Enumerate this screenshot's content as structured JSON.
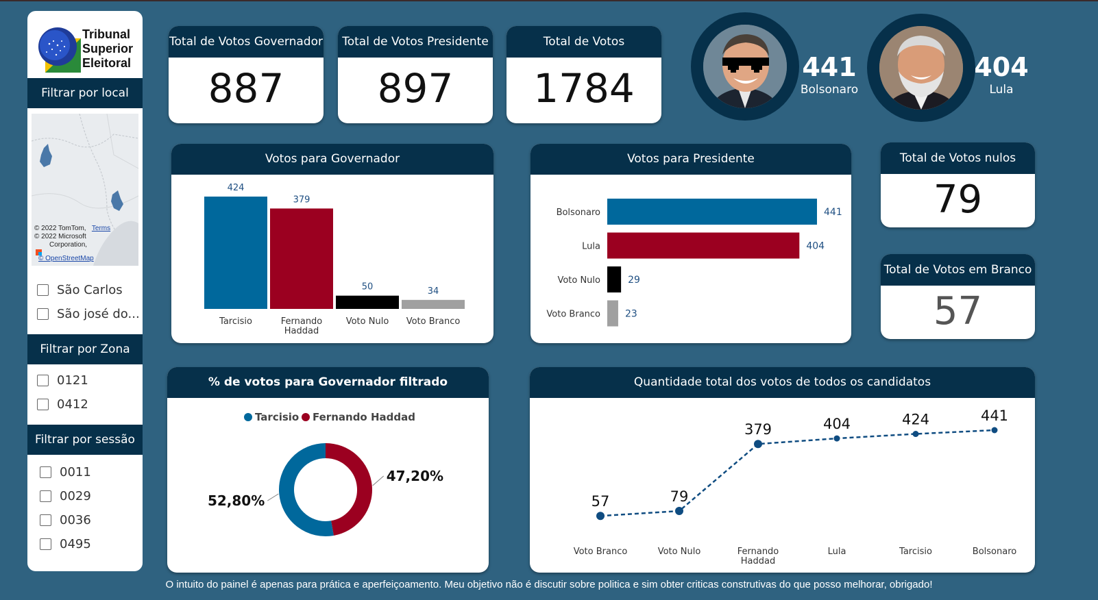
{
  "logo": {
    "line1": "Tribunal",
    "line2": "Superior",
    "line3": "Eleitoral"
  },
  "sidebar": {
    "local_title": "Filtrar por local",
    "map_attribution": {
      "line1": "© 2022 TomTom,",
      "terms": "Terms",
      "line2": "© 2022 Microsoft",
      "line3": "Corporation,",
      "osm": "© OpenStreetMap"
    },
    "locations": [
      "São Carlos",
      "São josé do..."
    ],
    "zona_title": "Filtrar por Zona",
    "zonas": [
      "0121",
      "0412"
    ],
    "sessao_title": "Filtrar por sessão",
    "sessoes": [
      "0011",
      "0029",
      "0036",
      "0495"
    ]
  },
  "kpis": {
    "governador": {
      "title": "Total de Votos Governador",
      "value": "887"
    },
    "presidente": {
      "title": "Total de Votos Presidente",
      "value": "897"
    },
    "total": {
      "title": "Total de Votos",
      "value": "1784"
    },
    "nulos": {
      "title": "Total de Votos nulos",
      "value": "79"
    },
    "branco": {
      "title": "Total de Votos em Branco",
      "value": "57"
    }
  },
  "candidates": [
    {
      "name": "Bolsonaro",
      "votes": "441"
    },
    {
      "name": "Lula",
      "votes": "404"
    }
  ],
  "charts": {
    "governador_title": "Votos para Governador",
    "presidente_title": "Votos para Presidente",
    "pct_title": "% de votos para Governador filtrado",
    "total_title": "Quantidade total dos votos de todos os candidatos"
  },
  "colors": {
    "blue": "#00689c",
    "red": "#9b0020",
    "black": "#000000",
    "gray": "#a0a0a0",
    "navy": "#06304a",
    "line": "#0f4c81"
  },
  "chart_data": [
    {
      "type": "bar",
      "title": "Votos para Governador",
      "categories": [
        "Tarcisio",
        "Fernando Haddad",
        "Voto Nulo",
        "Voto Branco"
      ],
      "values": [
        424,
        379,
        50,
        34
      ],
      "ylim": [
        0,
        424
      ]
    },
    {
      "type": "bar",
      "orientation": "horizontal",
      "title": "Votos para Presidente",
      "categories": [
        "Bolsonaro",
        "Lula",
        "Voto Nulo",
        "Voto Branco"
      ],
      "values": [
        441,
        404,
        29,
        23
      ],
      "xlim": [
        0,
        441
      ]
    },
    {
      "type": "pie",
      "title": "% de votos para Governador filtrado",
      "legend": [
        "Tarcisio",
        "Fernando Haddad"
      ],
      "values": [
        52.8,
        47.2
      ],
      "labels": [
        "52,80%",
        "47,20%"
      ]
    },
    {
      "type": "line",
      "title": "Quantidade total dos votos de todos os candidatos",
      "categories": [
        "Voto Branco",
        "Voto Nulo",
        "Fernando Haddad",
        "Lula",
        "Tarcisio",
        "Bolsonaro"
      ],
      "values": [
        57,
        79,
        379,
        404,
        424,
        441
      ]
    }
  ],
  "footer": "O intuito do painel é apenas para prática e aperfeiçoamento. Meu objetivo não é discutir sobre politica e sim obter criticas construtivas do que posso melhorar, obrigado!"
}
